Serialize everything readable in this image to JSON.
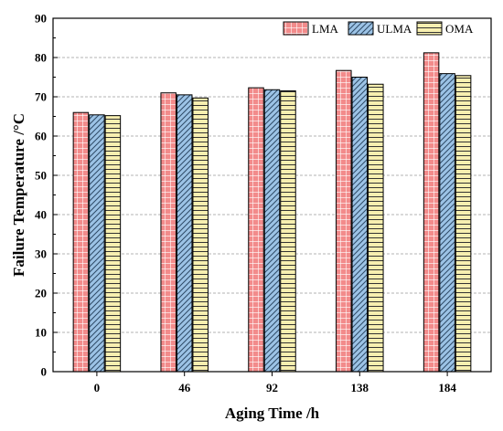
{
  "chart_data": {
    "type": "bar",
    "title": "",
    "xlabel": "Aging Time /h",
    "ylabel": "Failure Temperature /°C",
    "categories": [
      "0",
      "46",
      "92",
      "138",
      "184"
    ],
    "ylim": [
      0,
      90
    ],
    "yticks": [
      0,
      10,
      20,
      30,
      40,
      50,
      60,
      70,
      80,
      90
    ],
    "grid": "horizontal dashed",
    "legend_position": "top-right",
    "series": [
      {
        "name": "LMA",
        "values": [
          66.0,
          71.0,
          72.3,
          76.7,
          81.2
        ],
        "color": "#f28b8b",
        "pattern": "grid"
      },
      {
        "name": "ULMA",
        "values": [
          65.4,
          70.5,
          71.8,
          75.0,
          75.9
        ],
        "color": "#9cc3e6",
        "pattern": "diagonal"
      },
      {
        "name": "OMA",
        "values": [
          65.2,
          69.7,
          71.5,
          73.2,
          75.4
        ],
        "color": "#f7efb0",
        "pattern": "horizontal"
      }
    ]
  }
}
